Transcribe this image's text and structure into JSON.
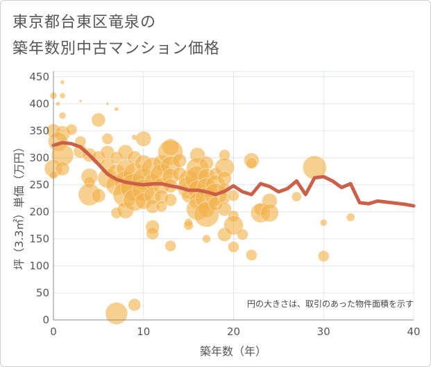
{
  "header": {
    "title_line1": "東京都台東区竜泉の",
    "title_line2": "築年数別中古マンション価格"
  },
  "chart_data": {
    "type": "scatter",
    "xlabel": "築年数（年）",
    "ylabel": "坪（3.3㎡）単価（万円）",
    "xlim": [
      0,
      40
    ],
    "ylim": [
      0,
      460
    ],
    "xticks": [
      0,
      10,
      20,
      30,
      40
    ],
    "yticks": [
      0,
      50,
      100,
      150,
      200,
      250,
      300,
      350,
      400,
      450
    ],
    "grid": true,
    "annotation": "円の大きさは、取引のあった物件面積を示す",
    "colors": {
      "bubble": "#f2b24a",
      "line": "#cc5f48",
      "grid": "#dde3ee",
      "axis": "#888888"
    },
    "bubbles": [
      {
        "x": 0,
        "y": 415,
        "s": 5
      },
      {
        "x": 0.5,
        "y": 400,
        "s": 3
      },
      {
        "x": 1,
        "y": 440,
        "s": 3
      },
      {
        "x": 1,
        "y": 415,
        "s": 4
      },
      {
        "x": 1,
        "y": 378,
        "s": 5
      },
      {
        "x": 0,
        "y": 350,
        "s": 10
      },
      {
        "x": 1,
        "y": 345,
        "s": 11
      },
      {
        "x": 2,
        "y": 352,
        "s": 8
      },
      {
        "x": 0.5,
        "y": 330,
        "s": 14
      },
      {
        "x": 1,
        "y": 305,
        "s": 16
      },
      {
        "x": 0,
        "y": 280,
        "s": 13
      },
      {
        "x": 1,
        "y": 280,
        "s": 10
      },
      {
        "x": 0,
        "y": 268,
        "s": 6
      },
      {
        "x": 3,
        "y": 330,
        "s": 8
      },
      {
        "x": 3,
        "y": 312,
        "s": 10
      },
      {
        "x": 4,
        "y": 305,
        "s": 10
      },
      {
        "x": 3,
        "y": 405,
        "s": 2
      },
      {
        "x": 5,
        "y": 370,
        "s": 10
      },
      {
        "x": 6,
        "y": 400,
        "s": 2
      },
      {
        "x": 7,
        "y": 390,
        "s": 3
      },
      {
        "x": 6,
        "y": 335,
        "s": 8
      },
      {
        "x": 4,
        "y": 265,
        "s": 12
      },
      {
        "x": 4,
        "y": 255,
        "s": 8
      },
      {
        "x": 4,
        "y": 232,
        "s": 16
      },
      {
        "x": 5,
        "y": 230,
        "s": 10
      },
      {
        "x": 5,
        "y": 300,
        "s": 10
      },
      {
        "x": 6,
        "y": 310,
        "s": 10
      },
      {
        "x": 6,
        "y": 285,
        "s": 11
      },
      {
        "x": 6,
        "y": 262,
        "s": 14
      },
      {
        "x": 7,
        "y": 300,
        "s": 9
      },
      {
        "x": 7,
        "y": 270,
        "s": 14
      },
      {
        "x": 7,
        "y": 250,
        "s": 15
      },
      {
        "x": 7,
        "y": 198,
        "s": 8
      },
      {
        "x": 8,
        "y": 310,
        "s": 11
      },
      {
        "x": 8,
        "y": 280,
        "s": 13
      },
      {
        "x": 8,
        "y": 255,
        "s": 16
      },
      {
        "x": 8,
        "y": 232,
        "s": 18
      },
      {
        "x": 8,
        "y": 203,
        "s": 12
      },
      {
        "x": 9,
        "y": 300,
        "s": 10
      },
      {
        "x": 9,
        "y": 270,
        "s": 16
      },
      {
        "x": 9,
        "y": 245,
        "s": 20
      },
      {
        "x": 9,
        "y": 222,
        "s": 16
      },
      {
        "x": 9,
        "y": 338,
        "s": 4
      },
      {
        "x": 10,
        "y": 335,
        "s": 11
      },
      {
        "x": 10,
        "y": 290,
        "s": 12
      },
      {
        "x": 10,
        "y": 260,
        "s": 16
      },
      {
        "x": 10,
        "y": 240,
        "s": 16
      },
      {
        "x": 10,
        "y": 220,
        "s": 12
      },
      {
        "x": 11,
        "y": 280,
        "s": 16
      },
      {
        "x": 11,
        "y": 255,
        "s": 12
      },
      {
        "x": 11,
        "y": 230,
        "s": 12
      },
      {
        "x": 11,
        "y": 210,
        "s": 10
      },
      {
        "x": 11,
        "y": 172,
        "s": 10
      },
      {
        "x": 11,
        "y": 160,
        "s": 9
      },
      {
        "x": 12,
        "y": 290,
        "s": 12
      },
      {
        "x": 12,
        "y": 268,
        "s": 16
      },
      {
        "x": 12,
        "y": 248,
        "s": 12
      },
      {
        "x": 12,
        "y": 228,
        "s": 10
      },
      {
        "x": 12,
        "y": 210,
        "s": 8
      },
      {
        "x": 13,
        "y": 320,
        "s": 12
      },
      {
        "x": 13,
        "y": 310,
        "s": 18
      },
      {
        "x": 13,
        "y": 285,
        "s": 14
      },
      {
        "x": 13,
        "y": 265,
        "s": 12
      },
      {
        "x": 13,
        "y": 248,
        "s": 10
      },
      {
        "x": 13,
        "y": 222,
        "s": 9
      },
      {
        "x": 13,
        "y": 137,
        "s": 8
      },
      {
        "x": 14,
        "y": 295,
        "s": 10
      },
      {
        "x": 14,
        "y": 270,
        "s": 10
      },
      {
        "x": 15,
        "y": 260,
        "s": 14
      },
      {
        "x": 15,
        "y": 245,
        "s": 16
      },
      {
        "x": 15,
        "y": 230,
        "s": 10
      },
      {
        "x": 15,
        "y": 180,
        "s": 6
      },
      {
        "x": 15,
        "y": 175,
        "s": 7
      },
      {
        "x": 16,
        "y": 305,
        "s": 11
      },
      {
        "x": 16,
        "y": 280,
        "s": 16
      },
      {
        "x": 16,
        "y": 262,
        "s": 18
      },
      {
        "x": 16,
        "y": 240,
        "s": 14
      },
      {
        "x": 16,
        "y": 220,
        "s": 12
      },
      {
        "x": 16,
        "y": 205,
        "s": 16
      },
      {
        "x": 17,
        "y": 290,
        "s": 10
      },
      {
        "x": 17,
        "y": 265,
        "s": 12
      },
      {
        "x": 17,
        "y": 245,
        "s": 14
      },
      {
        "x": 17,
        "y": 225,
        "s": 16
      },
      {
        "x": 17,
        "y": 205,
        "s": 12
      },
      {
        "x": 17,
        "y": 195,
        "s": 18
      },
      {
        "x": 17,
        "y": 150,
        "s": 6
      },
      {
        "x": 18,
        "y": 270,
        "s": 9
      },
      {
        "x": 18,
        "y": 250,
        "s": 14
      },
      {
        "x": 18,
        "y": 232,
        "s": 16
      },
      {
        "x": 18,
        "y": 215,
        "s": 10
      },
      {
        "x": 19,
        "y": 305,
        "s": 8
      },
      {
        "x": 19,
        "y": 282,
        "s": 14
      },
      {
        "x": 19,
        "y": 262,
        "s": 10
      },
      {
        "x": 19,
        "y": 242,
        "s": 9
      },
      {
        "x": 19,
        "y": 225,
        "s": 8
      },
      {
        "x": 19,
        "y": 205,
        "s": 10
      },
      {
        "x": 19,
        "y": 158,
        "s": 10
      },
      {
        "x": 20,
        "y": 192,
        "s": 8
      },
      {
        "x": 20,
        "y": 175,
        "s": 14
      },
      {
        "x": 20,
        "y": 135,
        "s": 8
      },
      {
        "x": 20,
        "y": 230,
        "s": 8
      },
      {
        "x": 21,
        "y": 158,
        "s": 8
      },
      {
        "x": 22,
        "y": 295,
        "s": 11
      },
      {
        "x": 22,
        "y": 290,
        "s": 8
      },
      {
        "x": 22,
        "y": 120,
        "s": 8
      },
      {
        "x": 23,
        "y": 205,
        "s": 9
      },
      {
        "x": 23,
        "y": 198,
        "s": 14
      },
      {
        "x": 24,
        "y": 220,
        "s": 11
      },
      {
        "x": 24,
        "y": 198,
        "s": 13
      },
      {
        "x": 27,
        "y": 228,
        "s": 7
      },
      {
        "x": 29,
        "y": 282,
        "s": 17
      },
      {
        "x": 30,
        "y": 180,
        "s": 5
      },
      {
        "x": 30,
        "y": 118,
        "s": 8
      },
      {
        "x": 33,
        "y": 190,
        "s": 6
      },
      {
        "x": 7,
        "y": 12,
        "s": 16
      },
      {
        "x": 9,
        "y": 28,
        "s": 9
      }
    ],
    "line": {
      "x": [
        0,
        1,
        2,
        3,
        4,
        5,
        6,
        7,
        8,
        9,
        10,
        11,
        12,
        13,
        14,
        15,
        16,
        17,
        18,
        19,
        20,
        21,
        22,
        23,
        24,
        25,
        26,
        27,
        28,
        29,
        30,
        31,
        32,
        33,
        34,
        35,
        36,
        37,
        38,
        39,
        40
      ],
      "y": [
        323,
        328,
        326,
        320,
        305,
        288,
        270,
        260,
        255,
        252,
        250,
        252,
        252,
        248,
        245,
        240,
        240,
        237,
        232,
        238,
        248,
        237,
        232,
        252,
        247,
        237,
        243,
        257,
        232,
        263,
        265,
        257,
        245,
        252,
        217,
        215,
        220,
        218,
        216,
        214,
        211
      ]
    }
  }
}
